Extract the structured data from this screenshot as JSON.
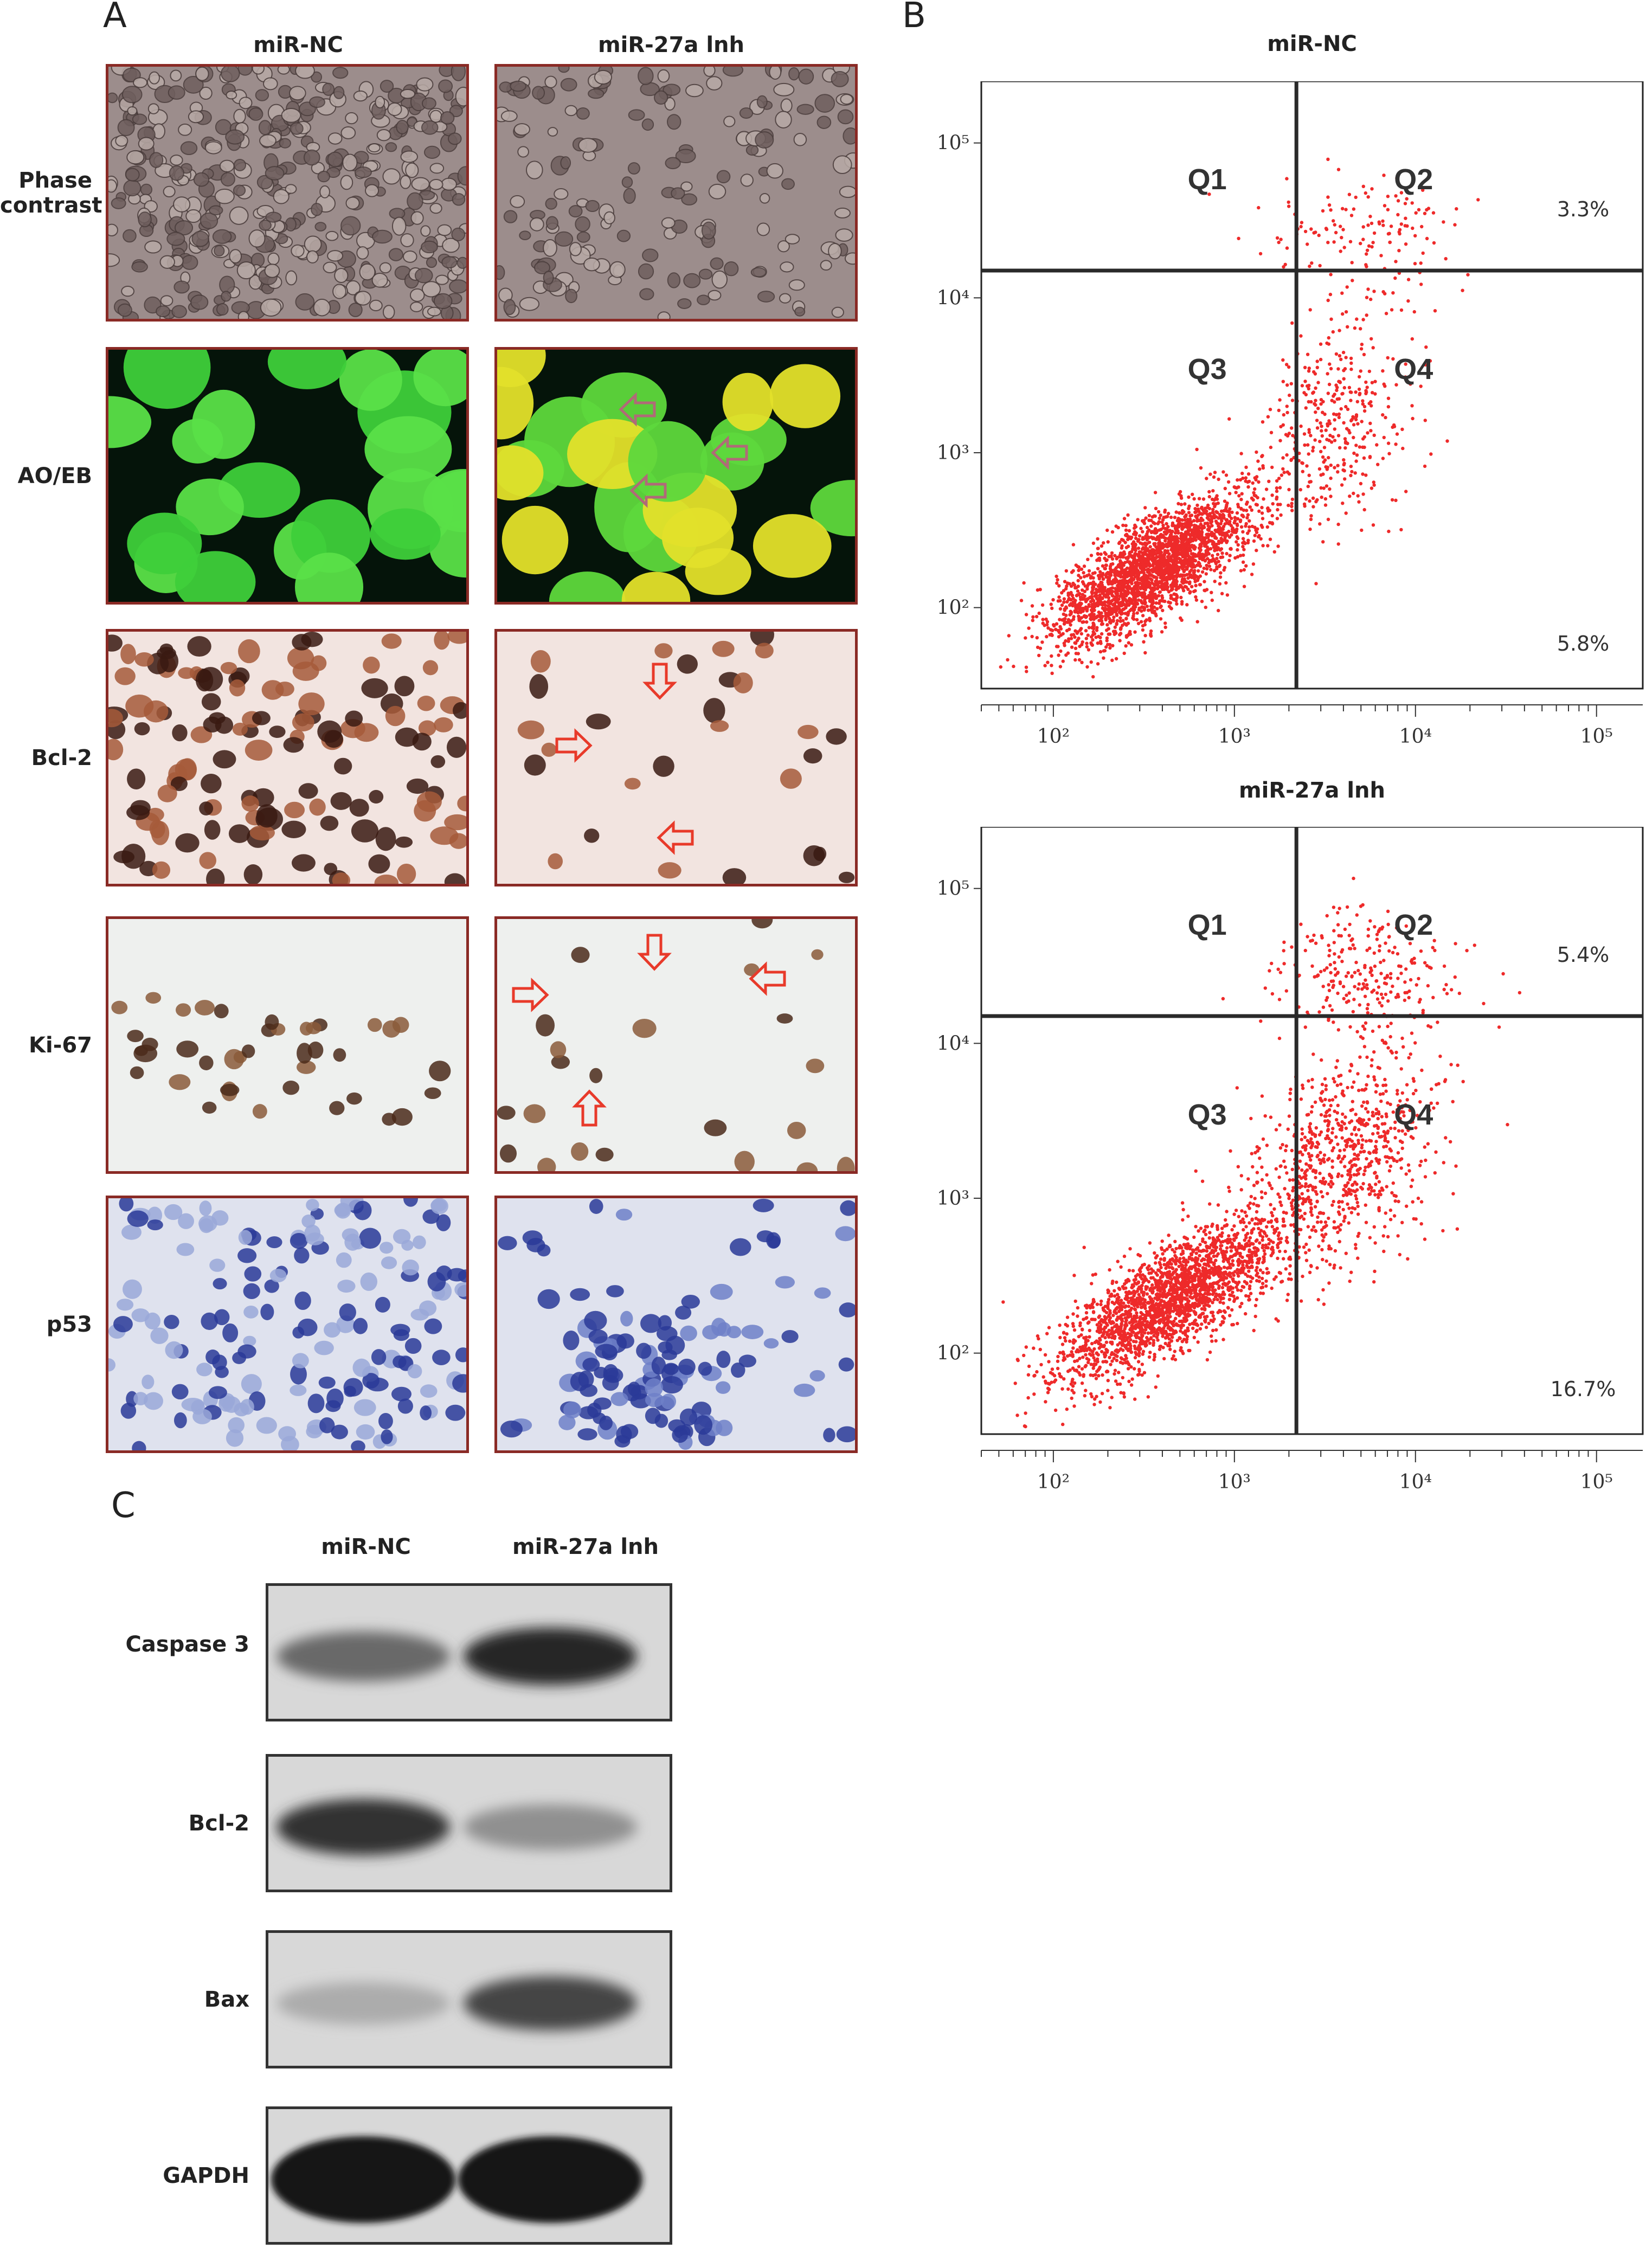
{
  "panels": {
    "a": {
      "letter": "A",
      "columns": [
        "miR-NC",
        "miR-27a lnh"
      ],
      "rows": [
        {
          "label": "Phase contrast",
          "type": "phase"
        },
        {
          "label": "AO/EB",
          "type": "aoeb"
        },
        {
          "label": "Bcl-2",
          "type": "ihc-brown"
        },
        {
          "label": "Ki-67",
          "type": "ihc-ki67"
        },
        {
          "label": "p53",
          "type": "ihc-blue"
        }
      ]
    },
    "b": {
      "letter": "B"
    },
    "c": {
      "letter": "C",
      "columns": [
        "miR-NC",
        "miR-27a lnh"
      ],
      "rows": [
        {
          "label": "Caspase 3",
          "band_intensity": [
            0.55,
            0.9
          ]
        },
        {
          "label": "Bcl-2",
          "band_intensity": [
            0.85,
            0.35
          ]
        },
        {
          "label": "Bax",
          "band_intensity": [
            0.2,
            0.75
          ]
        },
        {
          "label": "GAPDH",
          "band_intensity": [
            1.0,
            1.0
          ]
        }
      ]
    }
  },
  "chart_data": [
    {
      "type": "scatter",
      "title": "miR-NC",
      "scale": "log",
      "xlim": [
        40,
        180000
      ],
      "ylim": [
        30,
        250000
      ],
      "x_ticks": [
        "10²",
        "10³",
        "10⁴",
        "10⁵"
      ],
      "y_ticks": [
        "10⁵",
        "10⁴",
        "10³",
        "10²"
      ],
      "quadrant_labels": [
        "Q1",
        "Q2",
        "Q3",
        "Q4"
      ],
      "gate_x": 2200,
      "gate_y": 15000,
      "annotations": {
        "q2": "3.3%",
        "q4": "5.8%"
      },
      "point_color": "#ee2a2a",
      "seed": 7,
      "clusters": [
        {
          "n": 2600,
          "x_log_mean": 2.55,
          "y_log_mean": 2.25,
          "x_log_sd": 0.28,
          "y_log_sd": 0.24,
          "corr": 0.75
        },
        {
          "n": 380,
          "x_log_mean": 3.55,
          "y_log_mean": 3.2,
          "x_log_sd": 0.22,
          "y_log_sd": 0.35,
          "corr": 0.3
        },
        {
          "n": 140,
          "x_log_mean": 3.7,
          "y_log_mean": 4.4,
          "x_log_sd": 0.25,
          "y_log_sd": 0.22,
          "corr": 0.0
        }
      ]
    },
    {
      "type": "scatter",
      "title": "miR-27a lnh",
      "scale": "log",
      "xlim": [
        40,
        180000
      ],
      "ylim": [
        30,
        250000
      ],
      "x_ticks": [
        "10²",
        "10³",
        "10⁴",
        "10⁵"
      ],
      "y_ticks": [
        "10⁵",
        "10⁴",
        "10³",
        "10²"
      ],
      "quadrant_labels": [
        "Q1",
        "Q2",
        "Q3",
        "Q4"
      ],
      "gate_x": 2200,
      "gate_y": 15000,
      "annotations": {
        "q2": "5.4%",
        "q4": "16.7%"
      },
      "point_color": "#ee2a2a",
      "seed": 11,
      "clusters": [
        {
          "n": 2300,
          "x_log_mean": 2.65,
          "y_log_mean": 2.35,
          "x_log_sd": 0.3,
          "y_log_sd": 0.26,
          "corr": 0.75
        },
        {
          "n": 800,
          "x_log_mean": 3.6,
          "y_log_mean": 3.25,
          "x_log_sd": 0.25,
          "y_log_sd": 0.35,
          "corr": 0.35
        },
        {
          "n": 260,
          "x_log_mean": 3.7,
          "y_log_mean": 4.45,
          "x_log_sd": 0.25,
          "y_log_sd": 0.22,
          "corr": 0.0
        }
      ]
    }
  ]
}
